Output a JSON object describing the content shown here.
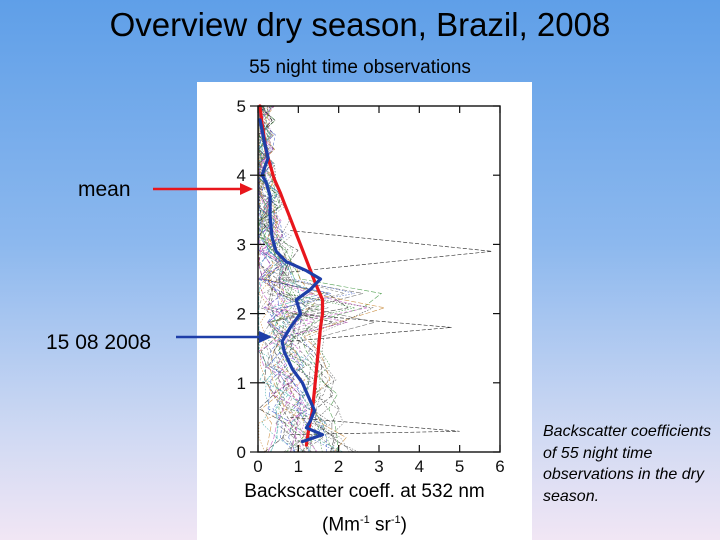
{
  "slide": {
    "title": "Overview dry season, Brazil, 2008",
    "caption": "Backscatter coefficients of 55 night time observations in the dry season.",
    "callouts": [
      {
        "label": "mean",
        "arrow_color": "#e8161c"
      },
      {
        "label": "15 08 2008",
        "arrow_color": "#1e3ea8"
      }
    ]
  },
  "chart_data": {
    "type": "line",
    "subtitle": "55 night time observations",
    "xlabel_line1": "Backscatter coeff. at 532 nm",
    "xlabel_unit_open": "(Mm",
    "xlabel_exp1": "-1",
    "xlabel_unit_mid": " sr",
    "xlabel_exp2": "-1",
    "xlabel_unit_close": ")",
    "ylabel": "",
    "xlim": [
      0,
      6
    ],
    "ylim": [
      0,
      5
    ],
    "xticks": [
      "0",
      "1",
      "2",
      "3",
      "4",
      "5",
      "6"
    ],
    "yticks": [
      "0",
      "1",
      "2",
      "3",
      "4",
      "5"
    ],
    "grid": false,
    "series": [
      {
        "name": "mean",
        "color": "#e8161c",
        "x": [
          1.2,
          1.25,
          1.35,
          1.4,
          1.45,
          1.5,
          1.55,
          1.6,
          1.6,
          1.45,
          1.35,
          1.25,
          1.15,
          1.05,
          0.95,
          0.85,
          0.75,
          0.65,
          0.55,
          0.4,
          0.3,
          0.2,
          0.15,
          0.1,
          0.05
        ],
        "y": [
          0.1,
          0.3,
          0.6,
          0.9,
          1.2,
          1.5,
          1.8,
          2.0,
          2.2,
          2.4,
          2.55,
          2.7,
          2.85,
          3.0,
          3.15,
          3.3,
          3.45,
          3.6,
          3.75,
          3.95,
          4.15,
          4.35,
          4.55,
          4.75,
          5.0
        ]
      },
      {
        "name": "15 08 2008",
        "color": "#1e3ea8",
        "x": [
          1.1,
          1.6,
          1.2,
          1.3,
          1.4,
          1.25,
          1.1,
          0.85,
          0.65,
          0.6,
          0.8,
          1.05,
          0.95,
          1.3,
          1.55,
          1.2,
          0.7,
          0.45,
          0.35,
          0.3,
          0.3,
          0.2,
          0.1,
          0.25,
          0.15,
          0.05
        ],
        "y": [
          0.15,
          0.25,
          0.35,
          0.45,
          0.6,
          0.8,
          1.0,
          1.2,
          1.45,
          1.6,
          1.8,
          2.0,
          2.2,
          2.35,
          2.5,
          2.62,
          2.75,
          2.9,
          3.1,
          3.4,
          3.7,
          3.9,
          4.0,
          4.25,
          4.5,
          4.8
        ]
      }
    ]
  }
}
